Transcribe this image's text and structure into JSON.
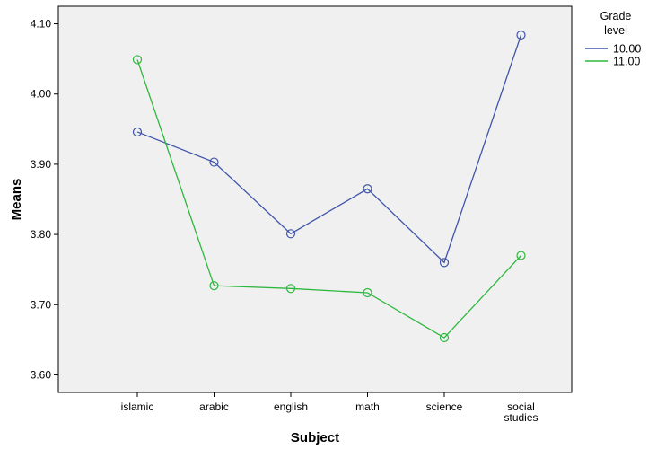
{
  "chart_data": {
    "type": "line",
    "xlabel": "Subject",
    "ylabel": "Means",
    "categories": [
      [
        "islamic"
      ],
      [
        "arabic"
      ],
      [
        "english"
      ],
      [
        "math"
      ],
      [
        "science"
      ],
      [
        "social",
        "studies"
      ]
    ],
    "ylim": [
      3.575,
      4.125
    ],
    "yticks": [
      "3.60",
      "3.70",
      "3.80",
      "3.90",
      "4.00",
      "4.10"
    ],
    "legend": {
      "title": [
        "Grade",
        "level"
      ],
      "placement": "right"
    },
    "series": [
      {
        "name": "10.00",
        "color": "#3e54a8",
        "values": [
          3.946,
          3.903,
          3.801,
          3.865,
          3.76,
          4.084
        ]
      },
      {
        "name": "11.00",
        "color": "#2db83d",
        "values": [
          4.049,
          3.727,
          3.723,
          3.717,
          3.653,
          3.77
        ]
      }
    ],
    "marker": "open-circle",
    "plot_background": "#f0f0f0",
    "grid": false
  }
}
